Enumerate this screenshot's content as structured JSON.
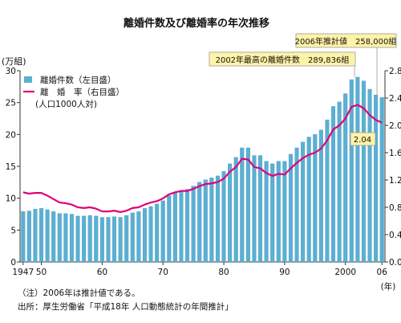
{
  "chart_data": {
    "type": "bar",
    "title": "離婚件数及び離婚率の年次推移",
    "unit_left": "(万組)",
    "unit_x": "(年)",
    "legend": {
      "items": [
        {
          "label": "離婚件数（左目盛）",
          "color": "#5bb0d3"
        },
        {
          "label": "離　婚　率（右目盛）",
          "color": "#e0007a"
        }
      ],
      "note": "(人口1000人対)"
    },
    "x_ticks": [
      "1947",
      "50",
      "60",
      "70",
      "80",
      "90",
      "2000",
      "06"
    ],
    "x_tick_years": [
      1947,
      1950,
      1960,
      1970,
      1980,
      1990,
      2000,
      2006
    ],
    "years": [
      1947,
      1948,
      1949,
      1950,
      1951,
      1952,
      1953,
      1954,
      1955,
      1956,
      1957,
      1958,
      1959,
      1960,
      1961,
      1962,
      1963,
      1964,
      1965,
      1966,
      1967,
      1968,
      1969,
      1970,
      1971,
      1972,
      1973,
      1974,
      1975,
      1976,
      1977,
      1978,
      1979,
      1980,
      1981,
      1982,
      1983,
      1984,
      1985,
      1986,
      1987,
      1988,
      1989,
      1990,
      1991,
      1992,
      1993,
      1994,
      1995,
      1996,
      1997,
      1998,
      1999,
      2000,
      2001,
      2002,
      2003,
      2004,
      2005,
      2006
    ],
    "series": [
      {
        "name": "離婚件数（左目盛）",
        "axis": "left",
        "values": [
          7.9,
          8.0,
          8.3,
          8.4,
          8.2,
          7.9,
          7.6,
          7.6,
          7.5,
          7.2,
          7.2,
          7.3,
          7.2,
          7.0,
          7.0,
          7.1,
          7.0,
          7.3,
          7.7,
          7.9,
          8.4,
          8.7,
          9.1,
          9.6,
          10.4,
          10.8,
          11.2,
          11.4,
          11.9,
          12.5,
          12.9,
          13.2,
          13.5,
          14.2,
          15.4,
          16.4,
          17.9,
          17.9,
          16.7,
          16.7,
          15.8,
          15.4,
          15.8,
          15.8,
          16.9,
          17.9,
          18.8,
          19.6,
          20.0,
          20.7,
          22.3,
          24.4,
          25.1,
          26.4,
          28.6,
          29.0,
          28.4,
          27.1,
          26.2,
          25.8
        ]
      },
      {
        "name": "離　婚　率（右目盛）",
        "axis": "right",
        "values": [
          1.02,
          1.0,
          1.01,
          1.01,
          0.97,
          0.92,
          0.87,
          0.86,
          0.84,
          0.8,
          0.79,
          0.8,
          0.78,
          0.74,
          0.74,
          0.75,
          0.73,
          0.75,
          0.79,
          0.8,
          0.84,
          0.87,
          0.89,
          0.93,
          0.99,
          1.02,
          1.04,
          1.04,
          1.07,
          1.11,
          1.14,
          1.15,
          1.17,
          1.22,
          1.32,
          1.39,
          1.51,
          1.5,
          1.39,
          1.37,
          1.3,
          1.26,
          1.29,
          1.28,
          1.37,
          1.45,
          1.52,
          1.57,
          1.6,
          1.66,
          1.78,
          1.94,
          2.0,
          2.1,
          2.27,
          2.3,
          2.25,
          2.15,
          2.08,
          2.04
        ]
      }
    ],
    "ylim_left": [
      0,
      30
    ],
    "y_ticks_left": [
      0,
      5,
      10,
      15,
      20,
      25,
      30
    ],
    "ylim_right": [
      0,
      2.8
    ],
    "y_ticks_right": [
      "0.0",
      "0.4",
      "0.8",
      "1.2",
      "1.6",
      "2.0",
      "2.4",
      "2.8"
    ],
    "annotations": [
      {
        "text": "2006年推計値　258,000組",
        "year": 2006,
        "value": 25.8,
        "axis": "left"
      },
      {
        "text": "2002年最高の離婚件数　289,836組",
        "year": 2002,
        "value": 28.98,
        "axis": "left"
      },
      {
        "text": "2.04",
        "year": 2006,
        "value": 2.04,
        "axis": "right"
      }
    ],
    "grid": false
  },
  "notes": [
    "（注）2006年は推計値である。",
    "出所：厚生労働省「平成18年 人口動態統計の年間推計」"
  ]
}
